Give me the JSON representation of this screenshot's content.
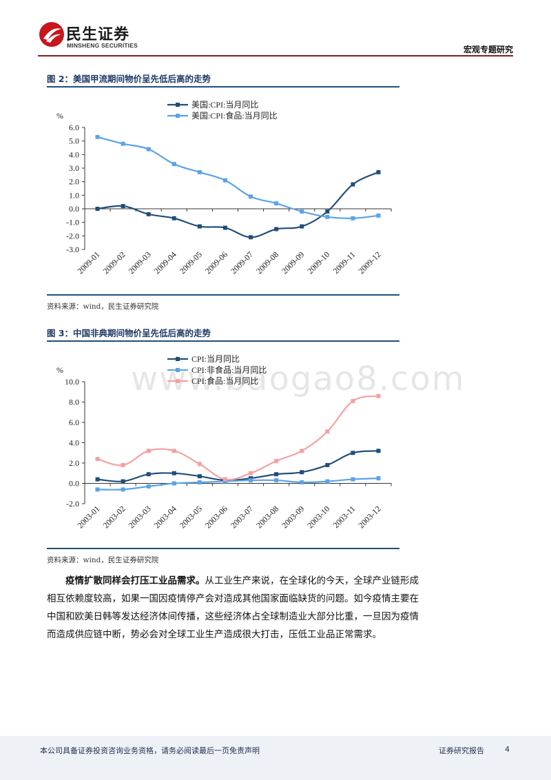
{
  "header": {
    "logo_cn": "民生证券",
    "logo_en": "MINSHENG SECURITIES",
    "report_type": "宏观专题研究"
  },
  "figures": [
    {
      "title": "图 2：美国甲流期间物价呈先低后高的走势",
      "source": "资料来源：wind，民生证券研究院",
      "chart_data": {
        "type": "line",
        "ylabel": "%",
        "ylim": [
          -3.0,
          6.0
        ],
        "yticks": [
          "6.0",
          "5.0",
          "4.0",
          "3.0",
          "2.0",
          "1.0",
          "0.0",
          "-1.0",
          "-2.0",
          "-3.0"
        ],
        "categories": [
          "2009-01",
          "2009-02",
          "2009-03",
          "2009-04",
          "2009-05",
          "2009-06",
          "2009-07",
          "2009-08",
          "2009-09",
          "2009-10",
          "2009-11",
          "2009-12"
        ],
        "legend_position": "top",
        "series": [
          {
            "name": "美国:CPI:当月同比",
            "color": "#1f4e79",
            "values": [
              0.0,
              0.2,
              -0.4,
              -0.7,
              -1.3,
              -1.4,
              -2.1,
              -1.5,
              -1.3,
              -0.2,
              1.8,
              2.7
            ]
          },
          {
            "name": "美国:CPI:食品:当月同比",
            "color": "#5ba3e6",
            "values": [
              5.3,
              4.8,
              4.4,
              3.3,
              2.7,
              2.1,
              0.9,
              0.4,
              -0.2,
              -0.6,
              -0.7,
              -0.5
            ]
          }
        ]
      }
    },
    {
      "title": "图 3：中国非典期间物价呈先低后高的走势",
      "source": "资料来源：wind，民生证券研究院",
      "chart_data": {
        "type": "line",
        "ylabel": "%",
        "ylim": [
          -2.0,
          10.0
        ],
        "yticks": [
          "10.0",
          "8.0",
          "6.0",
          "4.0",
          "2.0",
          "0.0",
          "-2.0"
        ],
        "categories": [
          "2003-01",
          "2003-02",
          "2003-03",
          "2003-04",
          "2003-05",
          "2003-06",
          "2003-07",
          "2003-08",
          "2003-09",
          "2003-10",
          "2003-11",
          "2003-12"
        ],
        "legend_position": "top",
        "series": [
          {
            "name": "CPI:当月同比",
            "color": "#1f4e79",
            "values": [
              0.4,
              0.2,
              0.9,
              1.0,
              0.7,
              0.3,
              0.5,
              0.9,
              1.1,
              1.8,
              3.0,
              3.2
            ]
          },
          {
            "name": "CPI:非食品:当月同比",
            "color": "#5ba3e6",
            "values": [
              -0.6,
              -0.6,
              -0.3,
              0.0,
              0.1,
              0.2,
              0.3,
              0.3,
              0.1,
              0.2,
              0.4,
              0.5
            ]
          },
          {
            "name": "CPI:食品:当月同比",
            "color": "#f4a0a0",
            "values": [
              2.4,
              1.8,
              3.2,
              3.2,
              1.9,
              0.4,
              1.0,
              2.2,
              3.2,
              5.1,
              8.1,
              8.6
            ]
          }
        ]
      }
    }
  ],
  "watermark": "www.baogao8.com",
  "paragraph": {
    "lead": "疫情扩散同样会打压工业品需求。",
    "body": "从工业生产来说，在全球化的今天，全球产业链形成相互依赖度较高，如果一国因疫情停产会对造成其他国家面临缺货的问题。如今疫情主要在中国和欧美日韩等发达经济体间传播，这些经济体占全球制造业大部分比重，一旦因为疫情而造成供应链中断，势必会对全球工业生产造成很大打击，压低工业品正常需求。"
  },
  "footer": {
    "disclaimer": "本公司具备证券投资咨询业务资格，请务必阅读最后一页免责声明",
    "report_label": "证券研究报告",
    "page_number": "4"
  }
}
